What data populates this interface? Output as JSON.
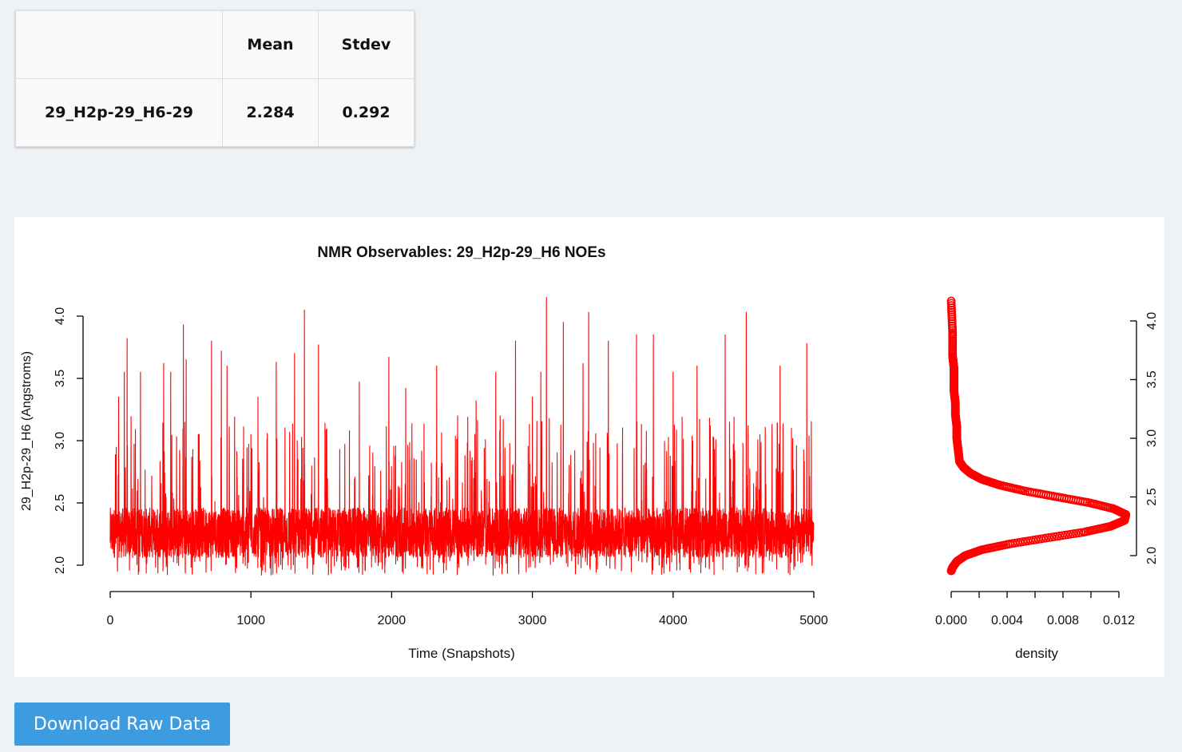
{
  "stats_table": {
    "header": [
      "",
      "Mean",
      "Stdev"
    ],
    "rows": [
      {
        "label": "29_H2p-29_H6-29",
        "mean": "2.284",
        "stdev": "0.292"
      }
    ]
  },
  "download_button": {
    "label": "Download Raw Data"
  },
  "colors": {
    "series": "#ff0000",
    "button": "#3d9be0",
    "page_bg": "#eef1f5"
  },
  "chart_data": [
    {
      "type": "line",
      "title": "NMR Observables: 29_H2p-29_H6 NOEs",
      "xlabel": "Time (Snapshots)",
      "ylabel": "29_H2p-29_H6 (Angstroms)",
      "xlim": [
        0,
        5000
      ],
      "ylim": [
        2.0,
        4.0
      ],
      "x_ticks": [
        "0",
        "1000",
        "2000",
        "3000",
        "4000",
        "5000"
      ],
      "y_ticks": [
        "2.0",
        "2.5",
        "3.0",
        "3.5",
        "4.0"
      ],
      "grid": false,
      "legend": "none",
      "series": [
        {
          "n_points": 5000,
          "mean": 2.284,
          "stdev": 0.292,
          "min": 1.87,
          "max": 4.15,
          "color": "#ff0000",
          "spikes": [
            [
              60,
              3.35
            ],
            [
              100,
              3.55
            ],
            [
              120,
              3.82
            ],
            [
              215,
              3.55
            ],
            [
              380,
              3.62
            ],
            [
              430,
              3.55
            ],
            [
              520,
              3.93
            ],
            [
              540,
              3.65
            ],
            [
              720,
              3.8
            ],
            [
              790,
              3.72
            ],
            [
              830,
              3.6
            ],
            [
              1000,
              3.05
            ],
            [
              1050,
              3.35
            ],
            [
              1180,
              3.63
            ],
            [
              1310,
              3.7
            ],
            [
              1380,
              4.05
            ],
            [
              1480,
              3.77
            ],
            [
              1700,
              3.08
            ],
            [
              1770,
              3.47
            ],
            [
              1980,
              3.67
            ],
            [
              2100,
              3.42
            ],
            [
              2320,
              3.6
            ],
            [
              2600,
              3.32
            ],
            [
              2740,
              3.55
            ],
            [
              2880,
              3.8
            ],
            [
              3000,
              3.35
            ],
            [
              3060,
              3.55
            ],
            [
              3100,
              4.15
            ],
            [
              3220,
              3.95
            ],
            [
              3360,
              3.62
            ],
            [
              3400,
              4.03
            ],
            [
              3540,
              3.8
            ],
            [
              3740,
              3.85
            ],
            [
              3860,
              3.85
            ],
            [
              4000,
              3.55
            ],
            [
              4170,
              3.6
            ],
            [
              4370,
              3.85
            ],
            [
              4520,
              4.03
            ],
            [
              4760,
              3.6
            ],
            [
              4950,
              3.78
            ]
          ]
        }
      ]
    },
    {
      "type": "scatter",
      "title": "",
      "xlabel": "density",
      "ylabel": "",
      "xlim": [
        0.0,
        0.012
      ],
      "ylim": [
        2.0,
        4.0
      ],
      "x_ticks": [
        "0.000",
        "0.004",
        "0.008",
        "0.012"
      ],
      "y_ticks": [
        "2.0",
        "2.5",
        "3.0",
        "3.5",
        "4.0"
      ],
      "grid": false,
      "legend": "none",
      "series": [
        {
          "color": "#ff0000",
          "x": [
            0.0,
            0.0001,
            0.0004,
            0.001,
            0.0022,
            0.0042,
            0.0068,
            0.0095,
            0.0114,
            0.0124,
            0.0125,
            0.0116,
            0.0099,
            0.0076,
            0.0053,
            0.0035,
            0.0022,
            0.0014,
            0.0009,
            0.0006,
            0.0005,
            0.0004,
            0.0004,
            0.0003,
            0.0003,
            0.0002,
            0.0002,
            0.0002,
            0.0001,
            0.0001,
            0.0
          ],
          "y": [
            1.87,
            1.9,
            1.95,
            2.0,
            2.05,
            2.1,
            2.15,
            2.2,
            2.25,
            2.3,
            2.35,
            2.4,
            2.45,
            2.5,
            2.55,
            2.6,
            2.65,
            2.7,
            2.75,
            2.8,
            2.9,
            3.0,
            3.1,
            3.2,
            3.3,
            3.4,
            3.5,
            3.6,
            3.7,
            3.9,
            4.17
          ]
        }
      ]
    }
  ]
}
